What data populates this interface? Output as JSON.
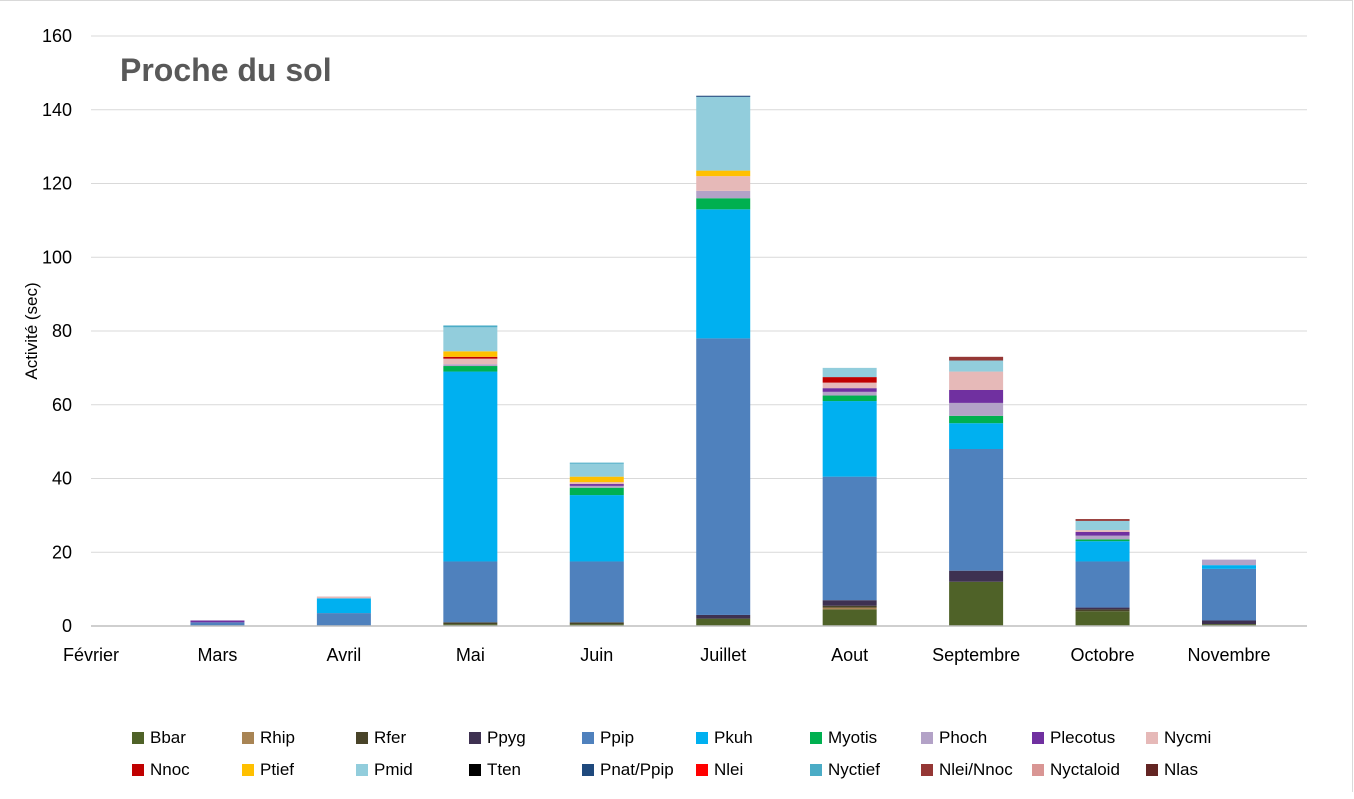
{
  "chart_data": {
    "type": "bar",
    "stacked": true,
    "title": "Proche du sol",
    "xlabel": "",
    "ylabel": "Activité (sec)",
    "ylim": [
      0,
      160
    ],
    "yticks": [
      0,
      20,
      40,
      60,
      80,
      100,
      120,
      140,
      160
    ],
    "grid": true,
    "legend_position": "bottom",
    "categories": [
      "Février",
      "Mars",
      "Avril",
      "Mai",
      "Juin",
      "Juillet",
      "Aout",
      "Septembre",
      "Octobre",
      "Novembre"
    ],
    "series": [
      {
        "name": "Bbar",
        "color": "#4f6228",
        "values": [
          0,
          0,
          0,
          0.5,
          0.5,
          2,
          4.5,
          12,
          4,
          0.5
        ]
      },
      {
        "name": "Rhip",
        "color": "#a88454",
        "values": [
          0,
          0,
          0,
          0,
          0,
          0,
          0.5,
          0,
          0,
          0
        ]
      },
      {
        "name": "Rfer",
        "color": "#494429",
        "values": [
          0,
          0,
          0,
          0.5,
          0.5,
          0,
          0.5,
          0,
          0.5,
          0
        ]
      },
      {
        "name": "Ppyg",
        "color": "#3e3151",
        "values": [
          0,
          0,
          0,
          0,
          0,
          1,
          1.5,
          3,
          0.5,
          1
        ]
      },
      {
        "name": "Ppip",
        "color": "#4f81bd",
        "values": [
          0,
          1,
          3.5,
          16.5,
          16.5,
          75,
          33.5,
          33,
          12.5,
          14
        ]
      },
      {
        "name": "Pkuh",
        "color": "#00b0f0",
        "values": [
          0,
          0,
          4,
          51.5,
          18,
          35,
          20.5,
          7,
          5.5,
          1
        ]
      },
      {
        "name": "Myotis",
        "color": "#00b050",
        "values": [
          0,
          0,
          0,
          1.5,
          2,
          3,
          1.5,
          2,
          0.5,
          0
        ]
      },
      {
        "name": "Phoch",
        "color": "#b3a2c7",
        "values": [
          0,
          0,
          0,
          0.5,
          0.5,
          2,
          1,
          3.5,
          1,
          1.5
        ]
      },
      {
        "name": "Plecotus",
        "color": "#7030a0",
        "values": [
          0,
          0.5,
          0,
          0,
          0.5,
          0,
          1,
          3.5,
          1,
          0
        ]
      },
      {
        "name": "Nycmi",
        "color": "#e6b9b8",
        "values": [
          0,
          0,
          0.5,
          1.5,
          0.5,
          4,
          1.5,
          5,
          0.5,
          0
        ]
      },
      {
        "name": "Nnoc",
        "color": "#c00000",
        "values": [
          0,
          0,
          0,
          0.5,
          0,
          0,
          1.5,
          0,
          0,
          0
        ]
      },
      {
        "name": "Ptief",
        "color": "#ffc000",
        "values": [
          0,
          0,
          0,
          1.5,
          1.5,
          1.5,
          0,
          0,
          0,
          0
        ]
      },
      {
        "name": "Pmid",
        "color": "#92cddc",
        "values": [
          0,
          0,
          0,
          6.5,
          3.5,
          20,
          2.5,
          3,
          2.5,
          0
        ]
      },
      {
        "name": "Tten",
        "color": "#000000",
        "values": [
          0,
          0,
          0,
          0,
          0,
          0,
          0,
          0,
          0,
          0
        ]
      },
      {
        "name": "Pnat/Ppip",
        "color": "#1f497d",
        "values": [
          0,
          0,
          0,
          0,
          0,
          0.3,
          0,
          0,
          0,
          0
        ]
      },
      {
        "name": "Nlei",
        "color": "#ff0000",
        "values": [
          0,
          0,
          0,
          0,
          0,
          0,
          0,
          0,
          0,
          0
        ]
      },
      {
        "name": "Nyctief",
        "color": "#4bacc6",
        "values": [
          0,
          0,
          0,
          0.5,
          0.3,
          0,
          0,
          0,
          0,
          0
        ]
      },
      {
        "name": "Nlei/Nnoc",
        "color": "#953735",
        "values": [
          0,
          0,
          0,
          0,
          0,
          0,
          0,
          1,
          0.5,
          0
        ]
      },
      {
        "name": "Nyctaloid",
        "color": "#d99694",
        "values": [
          0,
          0,
          0,
          0,
          0,
          0,
          0,
          0,
          0,
          0
        ]
      },
      {
        "name": "Nlas",
        "color": "#632523",
        "values": [
          0,
          0,
          0,
          0,
          0,
          0,
          0,
          0,
          0,
          0
        ]
      }
    ]
  }
}
